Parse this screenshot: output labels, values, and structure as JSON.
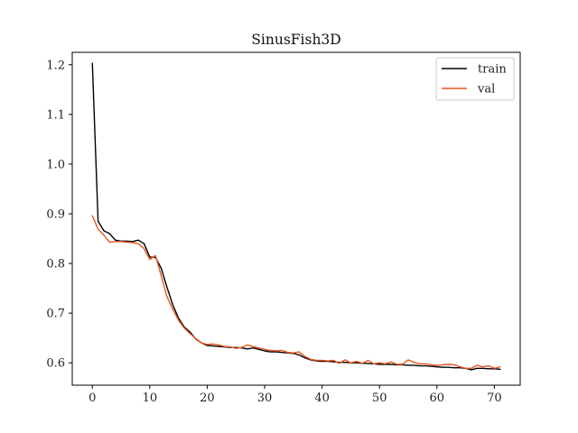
{
  "chart_data": {
    "type": "line",
    "title": "SinusFish3D",
    "xlabel": "",
    "ylabel": "",
    "xlim": [
      -3.5,
      74.5
    ],
    "ylim": [
      0.555,
      1.225
    ],
    "x_ticks": [
      0,
      10,
      20,
      30,
      40,
      50,
      60,
      70
    ],
    "y_ticks": [
      0.6,
      0.7,
      0.8,
      0.9,
      1.0,
      1.1,
      1.2
    ],
    "grid": false,
    "legend_position": "top-right",
    "series": [
      {
        "name": "train",
        "color": "#000000",
        "x": [
          0,
          1,
          2,
          3,
          4,
          5,
          6,
          7,
          8,
          9,
          10,
          11,
          12,
          13,
          14,
          15,
          16,
          17,
          18,
          19,
          20,
          21,
          22,
          23,
          24,
          25,
          26,
          27,
          28,
          29,
          30,
          31,
          32,
          33,
          34,
          35,
          36,
          37,
          38,
          39,
          40,
          41,
          42,
          43,
          44,
          45,
          46,
          47,
          48,
          49,
          50,
          51,
          52,
          53,
          54,
          55,
          56,
          57,
          58,
          59,
          60,
          61,
          62,
          63,
          64,
          65,
          66,
          67,
          68,
          69,
          70,
          71
        ],
        "values": [
          1.203,
          0.885,
          0.866,
          0.86,
          0.847,
          0.845,
          0.845,
          0.844,
          0.847,
          0.84,
          0.813,
          0.812,
          0.79,
          0.752,
          0.717,
          0.69,
          0.672,
          0.662,
          0.648,
          0.64,
          0.635,
          0.634,
          0.633,
          0.632,
          0.631,
          0.631,
          0.63,
          0.628,
          0.63,
          0.627,
          0.624,
          0.622,
          0.622,
          0.621,
          0.62,
          0.619,
          0.616,
          0.61,
          0.606,
          0.604,
          0.603,
          0.603,
          0.602,
          0.601,
          0.601,
          0.6,
          0.6,
          0.599,
          0.599,
          0.598,
          0.597,
          0.597,
          0.597,
          0.596,
          0.596,
          0.595,
          0.595,
          0.594,
          0.594,
          0.593,
          0.592,
          0.591,
          0.591,
          0.59,
          0.59,
          0.589,
          0.586,
          0.589,
          0.589,
          0.588,
          0.588,
          0.587
        ]
      },
      {
        "name": "val",
        "color": "#e8541e",
        "x": [
          0,
          1,
          2,
          3,
          4,
          5,
          6,
          7,
          8,
          9,
          10,
          11,
          12,
          13,
          14,
          15,
          16,
          17,
          18,
          19,
          20,
          21,
          22,
          23,
          24,
          25,
          26,
          27,
          28,
          29,
          30,
          31,
          32,
          33,
          34,
          35,
          36,
          37,
          38,
          39,
          40,
          41,
          42,
          43,
          44,
          45,
          46,
          47,
          48,
          49,
          50,
          51,
          52,
          53,
          54,
          55,
          56,
          57,
          58,
          59,
          60,
          61,
          62,
          63,
          64,
          65,
          66,
          67,
          68,
          69,
          70,
          71
        ],
        "values": [
          0.896,
          0.869,
          0.857,
          0.843,
          0.844,
          0.844,
          0.843,
          0.842,
          0.84,
          0.83,
          0.808,
          0.816,
          0.775,
          0.733,
          0.708,
          0.686,
          0.67,
          0.659,
          0.649,
          0.64,
          0.637,
          0.638,
          0.636,
          0.633,
          0.632,
          0.629,
          0.631,
          0.636,
          0.633,
          0.63,
          0.627,
          0.625,
          0.624,
          0.625,
          0.621,
          0.62,
          0.622,
          0.613,
          0.607,
          0.605,
          0.605,
          0.604,
          0.605,
          0.599,
          0.606,
          0.6,
          0.603,
          0.599,
          0.605,
          0.598,
          0.6,
          0.598,
          0.602,
          0.597,
          0.597,
          0.606,
          0.601,
          0.598,
          0.598,
          0.596,
          0.595,
          0.596,
          0.597,
          0.596,
          0.592,
          0.589,
          0.589,
          0.595,
          0.592,
          0.594,
          0.589,
          0.592
        ]
      }
    ]
  }
}
